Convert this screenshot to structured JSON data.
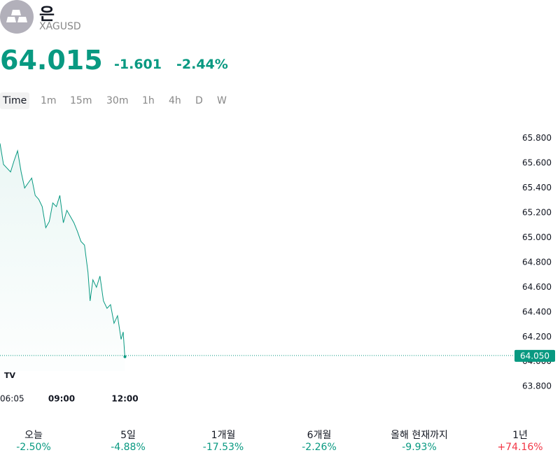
{
  "header": {
    "title": "은",
    "symbol": "XAGUSD",
    "price": "64.015",
    "change": "-1.601",
    "change_percent": "-2.44%"
  },
  "timeframes": [
    "Time",
    "1m",
    "15m",
    "30m",
    "1h",
    "4h",
    "D",
    "W"
  ],
  "chart_data": {
    "type": "line",
    "color": "#089981",
    "area": true,
    "x": [
      "06:05",
      "06:15",
      "06:25",
      "06:35",
      "06:45",
      "06:55",
      "07:05",
      "07:15",
      "07:25",
      "07:35",
      "07:45",
      "07:55",
      "08:05",
      "08:15",
      "08:25",
      "08:35",
      "08:45",
      "08:55",
      "09:05",
      "09:15",
      "09:25",
      "09:35",
      "09:45",
      "09:55",
      "10:05",
      "10:15",
      "10:21",
      "10:29",
      "10:39",
      "10:49",
      "10:59",
      "11:09",
      "11:19",
      "11:29",
      "11:39",
      "11:49",
      "11:55",
      "11:59",
      "12:00"
    ],
    "values": [
      65.76,
      65.59,
      65.56,
      65.53,
      65.62,
      65.7,
      65.53,
      65.4,
      65.44,
      65.48,
      65.34,
      65.31,
      65.25,
      65.08,
      65.13,
      65.28,
      65.25,
      65.34,
      65.12,
      65.22,
      65.17,
      65.12,
      65.05,
      64.97,
      64.94,
      64.72,
      64.49,
      64.66,
      64.6,
      64.69,
      64.49,
      64.43,
      64.46,
      64.31,
      64.37,
      64.18,
      64.24,
      64.07,
      64.04
    ],
    "xlim": [
      "06:05",
      "12:00"
    ],
    "xticks": [
      "06:05",
      "09:00",
      "12:00"
    ],
    "ylim": [
      63.75,
      65.9
    ],
    "yticks": [
      {
        "value": 65.8,
        "label": "65.800"
      },
      {
        "value": 65.6,
        "label": "65.600"
      },
      {
        "value": 65.4,
        "label": "65.400"
      },
      {
        "value": 65.2,
        "label": "65.200"
      },
      {
        "value": 65.0,
        "label": "65.000"
      },
      {
        "value": 64.8,
        "label": "64.800"
      },
      {
        "value": 64.6,
        "label": "64.600"
      },
      {
        "value": 64.4,
        "label": "64.400"
      },
      {
        "value": 64.2,
        "label": "64.200"
      },
      {
        "value": 64.0,
        "label": "64.000"
      },
      {
        "value": 63.8,
        "label": "63.800"
      }
    ],
    "last_price": {
      "value": 64.05,
      "label": "64.050"
    }
  },
  "performance": [
    {
      "label": "오늘",
      "value": "-2.50%"
    },
    {
      "label": "5일",
      "value": "-4.88%"
    },
    {
      "label": "1개월",
      "value": "-17.53%"
    },
    {
      "label": "6개월",
      "value": "-2.26%"
    },
    {
      "label": "올해 현재까지",
      "value": "-9.93%"
    },
    {
      "label": "1년",
      "value": "+74.16%"
    }
  ]
}
